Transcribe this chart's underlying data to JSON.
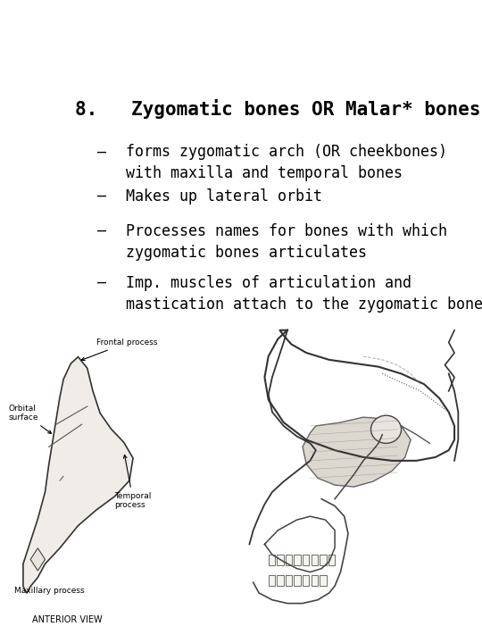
{
  "title": "8.   Zygomatic bones OR Malar* bones",
  "bullets": [
    "forms zygomatic arch (OR cheekbones)\nwith maxilla and temporal bones",
    "Makes up lateral orbit",
    "Processes names for bones with which\nzygomatic bones articulates",
    "Imp. muscles of articulation and\nmastication attach to the zygomatic bone."
  ],
  "bullet_symbol": "–",
  "bg_color": "#ffffff",
  "text_color": "#000000",
  "title_fontsize": 15,
  "bullet_fontsize": 12,
  "font_family": "monospace",
  "fig_width": 5.4,
  "fig_height": 7.2,
  "dpi": 100,
  "left_img_label1": "Frontal process",
  "left_img_label2": "Orbital\nsurface",
  "left_img_label3": "Temporal\nprocess",
  "left_img_label4": "Maxillary process",
  "left_img_caption": "ANTERIOR VIEW"
}
